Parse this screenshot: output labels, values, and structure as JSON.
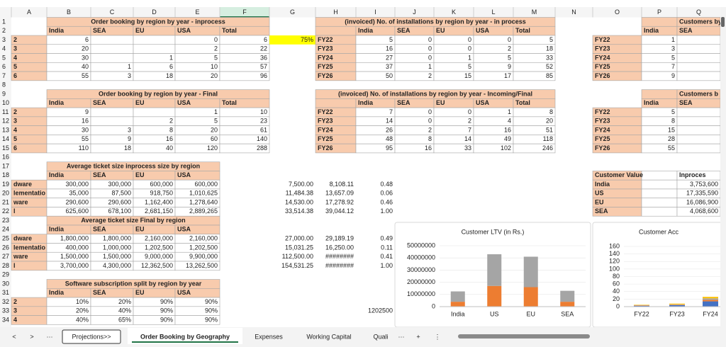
{
  "columns": [
    "A",
    "B",
    "C",
    "D",
    "E",
    "F",
    "G",
    "H",
    "I",
    "J",
    "K",
    "L",
    "M",
    "N",
    "O",
    "P",
    "Q"
  ],
  "row_numbers": [
    1,
    2,
    3,
    4,
    5,
    6,
    7,
    8,
    9,
    10,
    11,
    12,
    13,
    14,
    15,
    16,
    17,
    18,
    19,
    20,
    21,
    22,
    23,
    24,
    25,
    26,
    27,
    28,
    29,
    30,
    31,
    32,
    33,
    34
  ],
  "cells": {
    "1": {
      "B": "Order booking by region by year - inprocess",
      "H": "(invoiced) No. of installations by region by year - in process",
      "Q": "Customers by"
    },
    "2": {
      "B": "India",
      "C": "SEA",
      "D": "EU",
      "E": "USA",
      "F": "Total",
      "I": "India",
      "J": "SEA",
      "K": "EU",
      "L": "USA",
      "M": "Total",
      "P": "India",
      "Q": "SEA"
    },
    "3": {
      "A": "2",
      "B": "6",
      "E": "0",
      "F": "6",
      "G": "75%",
      "H": "FY22",
      "I": "5",
      "J": "0",
      "K": "0",
      "L": "0",
      "M": "5",
      "O": "FY22",
      "P": "1"
    },
    "4": {
      "A": "3",
      "B": "20",
      "E": "2",
      "F": "22",
      "H": "FY23",
      "I": "16",
      "J": "0",
      "K": "0",
      "L": "2",
      "M": "18",
      "O": "FY23",
      "P": "3"
    },
    "5": {
      "A": "4",
      "B": "30",
      "D": "1",
      "E": "5",
      "F": "36",
      "H": "FY24",
      "I": "27",
      "J": "0",
      "K": "1",
      "L": "5",
      "M": "33",
      "O": "FY24",
      "P": "5"
    },
    "6": {
      "A": "5",
      "B": "40",
      "C": "1",
      "D": "6",
      "E": "10",
      "F": "57",
      "H": "FY25",
      "I": "37",
      "J": "1",
      "K": "5",
      "L": "9",
      "M": "52",
      "O": "FY25",
      "P": "7"
    },
    "7": {
      "A": "6",
      "B": "55",
      "C": "3",
      "D": "18",
      "E": "20",
      "F": "96",
      "H": "FY26",
      "I": "50",
      "J": "2",
      "K": "15",
      "L": "17",
      "M": "85",
      "O": "FY26",
      "P": "9"
    },
    "9": {
      "B": "Order booking by region by year - Final",
      "H": "(invoiced) No. of installations by region by year - Incoming/Final",
      "Q": "Customers b"
    },
    "10": {
      "B": "India",
      "C": "SEA",
      "D": "EU",
      "E": "USA",
      "F": "Total",
      "I": "India",
      "J": "SEA",
      "K": "EU",
      "L": "USA",
      "M": "Total",
      "P": "India",
      "Q": "SEA"
    },
    "11": {
      "A": "2",
      "B": "9",
      "E": "1",
      "F": "10",
      "H": "FY22",
      "I": "7",
      "J": "0",
      "K": "0",
      "L": "1",
      "M": "8",
      "O": "FY22",
      "P": "5"
    },
    "12": {
      "A": "3",
      "B": "16",
      "D": "2",
      "E": "5",
      "F": "23",
      "H": "FY23",
      "I": "14",
      "J": "0",
      "K": "2",
      "L": "4",
      "M": "20",
      "O": "FY23",
      "P": "8"
    },
    "13": {
      "A": "4",
      "B": "30",
      "C": "3",
      "D": "8",
      "E": "20",
      "F": "61",
      "H": "FY24",
      "I": "26",
      "J": "2",
      "K": "7",
      "L": "16",
      "M": "51",
      "O": "FY24",
      "P": "15"
    },
    "14": {
      "A": "5",
      "B": "55",
      "C": "9",
      "D": "16",
      "E": "60",
      "F": "140",
      "H": "FY25",
      "I": "48",
      "J": "8",
      "K": "14",
      "L": "49",
      "M": "118",
      "O": "FY25",
      "P": "28"
    },
    "15": {
      "A": "6",
      "B": "110",
      "C": "18",
      "D": "40",
      "E": "120",
      "F": "288",
      "H": "FY26",
      "I": "95",
      "J": "16",
      "K": "33",
      "L": "102",
      "M": "246",
      "O": "FY26",
      "P": "55"
    },
    "17": {
      "B": "Average ticket size inprocess size by region"
    },
    "18": {
      "B": "India",
      "C": "SEA",
      "D": "EU",
      "E": "USA",
      "O": "Customer Value",
      "Q": "Inproces"
    },
    "19": {
      "A": "dware",
      "B": "300,000",
      "C": "300,000",
      "D": "600,000",
      "E": "600,000",
      "G": "7,500.00",
      "H": "8,108.11",
      "I": "0.48",
      "O": "India",
      "Q": "3,753,600"
    },
    "20": {
      "A": "lementatio",
      "B": "35,000",
      "C": "87,500",
      "D": "918,750",
      "E": "1,010,625",
      "G": "11,484.38",
      "H": "13,657.09",
      "I": "0.06",
      "O": "US",
      "Q": "17,335,590"
    },
    "21": {
      "A": "ware",
      "B": "290,600",
      "C": "290,600",
      "D": "1,162,400",
      "E": "1,278,640",
      "G": "14,530.00",
      "H": "17,278.92",
      "I": "0.46",
      "O": "EU",
      "Q": "16,086,900"
    },
    "22": {
      "A": "l",
      "B": "625,600",
      "C": "678,100",
      "D": "2,681,150",
      "E": "2,889,265",
      "G": "33,514.38",
      "H": "39,044.12",
      "I": "1.00",
      "O": "SEA",
      "Q": "4,068,600"
    },
    "23": {
      "B": "Average ticket size Final by region"
    },
    "24": {
      "B": "India",
      "C": "SEA",
      "D": "EU",
      "E": "USA"
    },
    "25": {
      "A": "dware",
      "B": "1,800,000",
      "C": "1,800,000",
      "D": "2,160,000",
      "E": "2,160,000",
      "G": "27,000.00",
      "H": "29,189.19",
      "I": "0.49"
    },
    "26": {
      "A": "lementatio",
      "B": "400,000",
      "C": "1,000,000",
      "D": "1,202,500",
      "E": "1,202,500",
      "G": "15,031.25",
      "H": "16,250.00",
      "I": "0.11"
    },
    "27": {
      "A": "ware",
      "B": "1,500,000",
      "C": "1,500,000",
      "D": "9,000,000",
      "E": "9,900,000",
      "G": "112,500.00",
      "H": "########",
      "I": "0.41"
    },
    "28": {
      "A": "l",
      "B": "3,700,000",
      "C": "4,300,000",
      "D": "12,362,500",
      "E": "13,262,500",
      "G": "154,531.25",
      "H": "########",
      "I": "1.00"
    },
    "30": {
      "B": "Software subscription split by region by year"
    },
    "31": {
      "B": "India",
      "C": "SEA",
      "D": "EU",
      "E": "USA"
    },
    "32": {
      "A": "2",
      "B": "10%",
      "C": "20%",
      "D": "90%",
      "E": "90%"
    },
    "33": {
      "A": "3",
      "B": "20%",
      "C": "40%",
      "D": "90%",
      "E": "90%",
      "I": "1202500"
    },
    "34": {
      "A": "4",
      "B": "40%",
      "C": "65%",
      "D": "90%",
      "E": "90%"
    }
  },
  "charts": [
    {
      "type": "bar",
      "title": "Customer LTV (in Rs.)",
      "categories": [
        "India",
        "US",
        "EU",
        "SEA"
      ],
      "ylim": [
        0,
        50000000
      ],
      "yticks": [
        0,
        10000000,
        20000000,
        30000000,
        40000000,
        50000000
      ],
      "series": [
        {
          "color": "#ed7d31",
          "values": [
            4000000,
            17000000,
            16000000,
            4000000
          ]
        },
        {
          "color": "#a5a5a5",
          "values": [
            8500000,
            26000000,
            25000000,
            9000000
          ]
        }
      ]
    },
    {
      "type": "bar",
      "title": "Customer Acc",
      "categories": [
        "FY22",
        "FY23",
        "FY24"
      ],
      "ylim": [
        0,
        160
      ],
      "yticks": [
        0,
        20,
        40,
        60,
        80,
        100,
        120,
        140,
        160
      ],
      "series": [
        {
          "color": "#4472c4",
          "values": [
            2,
            4,
            14
          ]
        },
        {
          "color": "#ed7d31",
          "values": [
            1,
            1,
            4
          ]
        },
        {
          "color": "#a5a5a5",
          "values": [
            1,
            1,
            4
          ]
        },
        {
          "color": "#ffc000",
          "values": [
            1,
            2,
            4
          ]
        }
      ]
    }
  ],
  "tab_nav": [
    "<",
    ">",
    "···"
  ],
  "sheet_tabs": [
    "Projections>>",
    "Order Booking by Geography",
    "Expenses",
    "Working Capital",
    "Quali"
  ],
  "tab_actions": [
    "···",
    "+",
    "⋮"
  ]
}
